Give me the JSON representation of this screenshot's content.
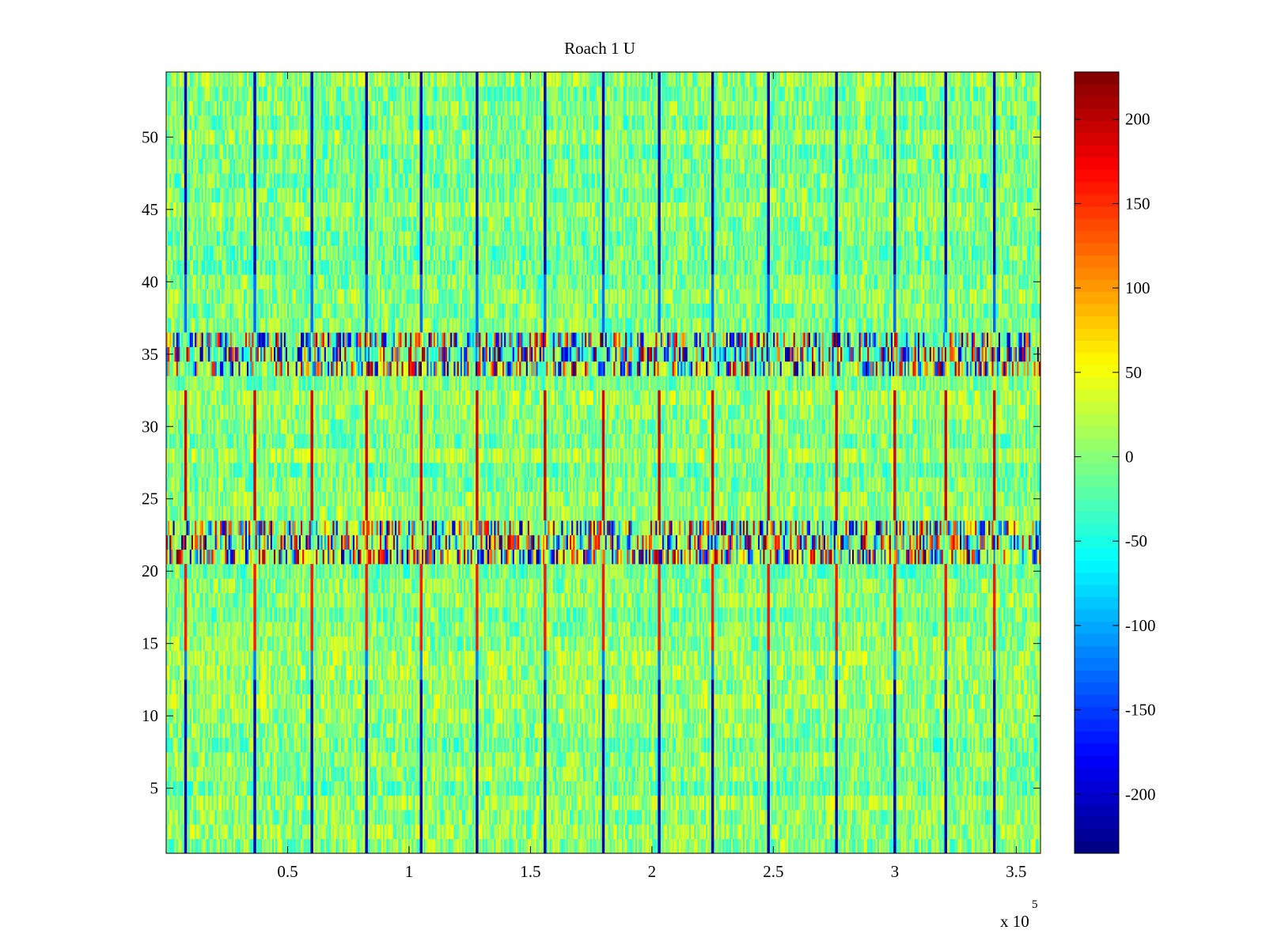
{
  "chart_data": {
    "type": "heatmap",
    "title": "Roach 1 U",
    "xlabel": "",
    "ylabel": "",
    "x_multiplier_label": "x 10",
    "x_multiplier_exponent": "5",
    "xlim": [
      0,
      360000
    ],
    "ylim": [
      0.5,
      54.5
    ],
    "x_ticks": [
      0.5,
      1,
      1.5,
      2,
      2.5,
      3,
      3.5
    ],
    "x_tick_labels": [
      "0.5",
      "1",
      "1.5",
      "2",
      "2.5",
      "3",
      "3.5"
    ],
    "y_ticks": [
      5,
      10,
      15,
      20,
      25,
      30,
      35,
      40,
      45,
      50
    ],
    "y_tick_labels": [
      "5",
      "10",
      "15",
      "20",
      "25",
      "30",
      "35",
      "40",
      "45",
      "50"
    ],
    "rows": 54,
    "background_range": [
      -50,
      50
    ],
    "event_columns_x": [
      8000,
      36500,
      60000,
      82500,
      105000,
      128000,
      156000,
      180000,
      203000,
      225000,
      248000,
      276000,
      300000,
      321000,
      341000
    ],
    "event_row_ranges": [
      {
        "rows": [
          1,
          12
        ],
        "value": -215
      },
      {
        "rows": [
          13,
          14
        ],
        "value": -120
      },
      {
        "rows": [
          15,
          20
        ],
        "value": 160
      },
      {
        "rows": [
          24,
          32
        ],
        "value": 190
      },
      {
        "rows": [
          37,
          40
        ],
        "value": -130
      },
      {
        "rows": [
          41,
          54
        ],
        "value": -215
      }
    ],
    "noisy_bands": [
      {
        "rows": [
          21,
          23
        ],
        "amplitude": 230
      },
      {
        "rows": [
          34,
          36
        ],
        "amplitude": 230
      }
    ],
    "colorbar": {
      "colormap": "jet",
      "clim": [
        -235,
        228
      ],
      "ticks": [
        -200,
        -150,
        -100,
        -50,
        0,
        50,
        100,
        150,
        200
      ],
      "tick_labels": [
        "-200",
        "-150",
        "-100",
        "-50",
        "0",
        "50",
        "100",
        "150",
        "200"
      ]
    },
    "grid": false,
    "legend": "none"
  }
}
